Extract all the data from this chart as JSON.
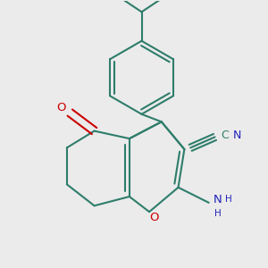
{
  "bg_color": "#ebebeb",
  "bond_color": "#2e7d6b",
  "bond_lw": 1.5,
  "o_color": "#cc0000",
  "n_color": "#2222bb",
  "fs": 9.5,
  "xlim": [
    -0.75,
    0.75
  ],
  "ylim": [
    -0.82,
    0.92
  ]
}
